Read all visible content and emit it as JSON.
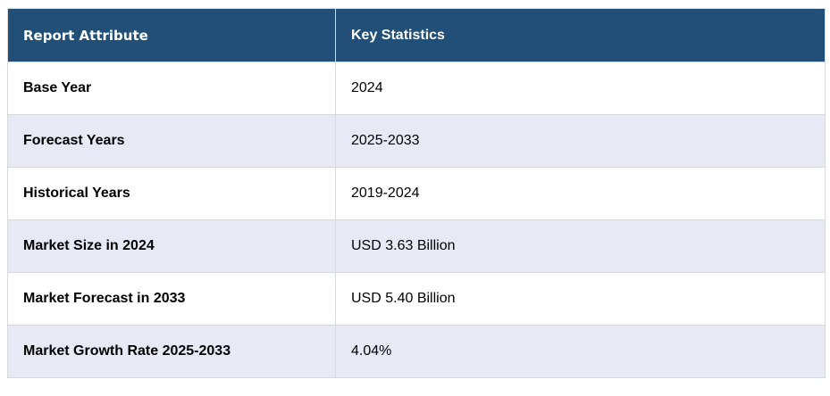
{
  "table": {
    "headers": [
      "Report Attribute",
      "Key Statistics"
    ],
    "rows": [
      {
        "attribute": "Base Year",
        "value": "2024"
      },
      {
        "attribute": "Forecast Years",
        "value": "2025-2033"
      },
      {
        "attribute": "Historical Years",
        "value": "2019-2024"
      },
      {
        "attribute": "Market Size in 2024",
        "value": "USD 3.63 Billion"
      },
      {
        "attribute": "Market Forecast in 2033",
        "value": "USD 5.40 Billion"
      },
      {
        "attribute": "Market Growth Rate 2025-2033",
        "value": "4.04%"
      }
    ]
  },
  "colors": {
    "header_bg": "#214f78",
    "alt_row_bg": "#e7e9f4"
  }
}
